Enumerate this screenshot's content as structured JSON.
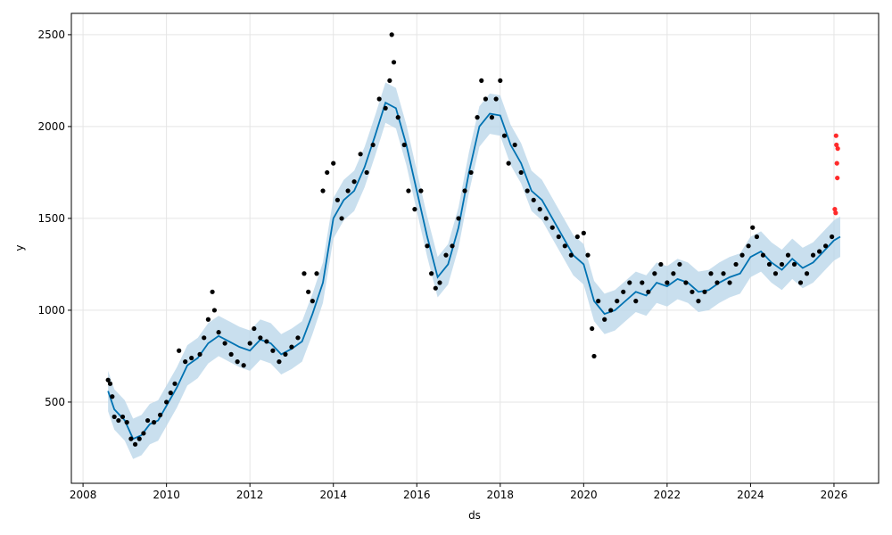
{
  "chart_data": {
    "type": "forecast",
    "xlabel": "ds",
    "ylabel": "y",
    "xlim": [
      2007.72,
      2027.07
    ],
    "ylim": [
      58,
      2616
    ],
    "xticks": [
      2008,
      2010,
      2012,
      2014,
      2016,
      2018,
      2020,
      2022,
      2024,
      2026
    ],
    "yticks": [
      500,
      1000,
      1500,
      2000,
      2500
    ],
    "grid": true,
    "series": [
      {
        "type": "scatter",
        "color": "#000000",
        "x": [
          2008.6,
          2008.65,
          2008.7,
          2008.75,
          2008.85,
          2008.95,
          2009.05,
          2009.15,
          2009.25,
          2009.35,
          2009.45,
          2009.55,
          2009.7,
          2009.85,
          2010.0,
          2010.1,
          2010.2,
          2010.3,
          2010.45,
          2010.6,
          2010.8,
          2010.9,
          2011.0,
          2011.1,
          2011.15,
          2011.25,
          2011.4,
          2011.55,
          2011.7,
          2011.85,
          2012.0,
          2012.1,
          2012.25,
          2012.4,
          2012.55,
          2012.7,
          2012.85,
          2013.0,
          2013.15,
          2013.3,
          2013.4,
          2013.5,
          2013.6,
          2013.75,
          2013.85,
          2014.0,
          2014.1,
          2014.2,
          2014.35,
          2014.5,
          2014.65,
          2014.8,
          2014.95,
          2015.1,
          2015.25,
          2015.35,
          2015.4,
          2015.45,
          2015.55,
          2015.7,
          2015.8,
          2015.95,
          2016.1,
          2016.25,
          2016.35,
          2016.45,
          2016.55,
          2016.7,
          2016.85,
          2017.0,
          2017.15,
          2017.3,
          2017.45,
          2017.55,
          2017.65,
          2017.8,
          2017.9,
          2018.0,
          2018.1,
          2018.2,
          2018.35,
          2018.5,
          2018.65,
          2018.8,
          2018.95,
          2019.1,
          2019.25,
          2019.4,
          2019.55,
          2019.7,
          2019.85,
          2020.0,
          2020.1,
          2020.2,
          2020.25,
          2020.35,
          2020.5,
          2020.65,
          2020.8,
          2020.95,
          2021.1,
          2021.25,
          2021.4,
          2021.55,
          2021.7,
          2021.85,
          2022.0,
          2022.15,
          2022.3,
          2022.45,
          2022.6,
          2022.75,
          2022.9,
          2023.05,
          2023.2,
          2023.35,
          2023.5,
          2023.65,
          2023.8,
          2023.95,
          2024.05,
          2024.15,
          2024.3,
          2024.45,
          2024.6,
          2024.75,
          2024.9,
          2025.05,
          2025.2,
          2025.35,
          2025.5,
          2025.65,
          2025.8,
          2025.95
        ],
        "values": [
          620,
          600,
          530,
          420,
          400,
          420,
          390,
          300,
          270,
          300,
          330,
          400,
          390,
          430,
          500,
          550,
          600,
          780,
          720,
          740,
          760,
          850,
          950,
          1100,
          1000,
          880,
          820,
          760,
          720,
          700,
          820,
          900,
          850,
          830,
          780,
          720,
          760,
          800,
          850,
          1200,
          1100,
          1050,
          1200,
          1650,
          1750,
          1800,
          1600,
          1500,
          1650,
          1700,
          1850,
          1750,
          1900,
          2150,
          2100,
          2250,
          2500,
          2350,
          2050,
          1900,
          1650,
          1550,
          1650,
          1350,
          1200,
          1120,
          1150,
          1300,
          1350,
          1500,
          1650,
          1750,
          2050,
          2250,
          2150,
          2050,
          2150,
          2250,
          1950,
          1800,
          1900,
          1750,
          1650,
          1600,
          1550,
          1500,
          1450,
          1400,
          1350,
          1300,
          1400,
          1420,
          1300,
          900,
          750,
          1050,
          950,
          1000,
          1050,
          1100,
          1150,
          1050,
          1150,
          1100,
          1200,
          1250,
          1150,
          1200,
          1250,
          1150,
          1100,
          1050,
          1100,
          1200,
          1150,
          1200,
          1150,
          1250,
          1300,
          1350,
          1450,
          1400,
          1300,
          1250,
          1200,
          1250,
          1300,
          1250,
          1150,
          1200,
          1300,
          1320,
          1350,
          1400
        ]
      },
      {
        "type": "line",
        "color": "#0072b2",
        "band_color": "#b7d4e8",
        "x": [
          2008.6,
          2008.75,
          2009.0,
          2009.2,
          2009.4,
          2009.6,
          2009.8,
          2010.0,
          2010.25,
          2010.5,
          2010.75,
          2011.0,
          2011.25,
          2011.5,
          2011.75,
          2012.0,
          2012.25,
          2012.5,
          2012.75,
          2013.0,
          2013.25,
          2013.5,
          2013.75,
          2014.0,
          2014.25,
          2014.5,
          2014.75,
          2015.0,
          2015.25,
          2015.5,
          2015.75,
          2016.0,
          2016.25,
          2016.5,
          2016.75,
          2017.0,
          2017.25,
          2017.5,
          2017.75,
          2018.0,
          2018.25,
          2018.5,
          2018.75,
          2019.0,
          2019.25,
          2019.5,
          2019.75,
          2020.0,
          2020.25,
          2020.5,
          2020.75,
          2021.0,
          2021.25,
          2021.5,
          2021.75,
          2022.0,
          2022.25,
          2022.5,
          2022.75,
          2023.0,
          2023.25,
          2023.5,
          2023.75,
          2024.0,
          2024.25,
          2024.5,
          2024.75,
          2025.0,
          2025.25,
          2025.5,
          2025.75,
          2026.0,
          2026.15
        ],
        "values": [
          560,
          460,
          400,
          300,
          320,
          380,
          400,
          480,
          580,
          700,
          740,
          820,
          860,
          830,
          800,
          780,
          840,
          820,
          760,
          790,
          830,
          980,
          1150,
          1500,
          1600,
          1650,
          1780,
          1950,
          2130,
          2100,
          1900,
          1650,
          1400,
          1180,
          1250,
          1450,
          1750,
          2000,
          2070,
          2060,
          1900,
          1800,
          1650,
          1600,
          1500,
          1400,
          1300,
          1250,
          1050,
          980,
          1000,
          1050,
          1100,
          1080,
          1150,
          1130,
          1170,
          1150,
          1100,
          1110,
          1150,
          1180,
          1200,
          1290,
          1320,
          1260,
          1220,
          1280,
          1230,
          1260,
          1320,
          1380,
          1400
        ],
        "lower": [
          450,
          350,
          290,
          190,
          210,
          270,
          290,
          370,
          470,
          590,
          630,
          710,
          750,
          720,
          690,
          670,
          730,
          710,
          650,
          680,
          720,
          870,
          1040,
          1390,
          1490,
          1540,
          1670,
          1840,
          2020,
          1990,
          1790,
          1540,
          1290,
          1070,
          1140,
          1340,
          1640,
          1890,
          1960,
          1950,
          1790,
          1690,
          1540,
          1490,
          1390,
          1290,
          1190,
          1140,
          940,
          870,
          890,
          940,
          990,
          970,
          1040,
          1020,
          1060,
          1040,
          990,
          1000,
          1040,
          1070,
          1090,
          1180,
          1210,
          1150,
          1110,
          1170,
          1120,
          1150,
          1210,
          1270,
          1290
        ],
        "upper": [
          670,
          570,
          510,
          410,
          430,
          490,
          510,
          590,
          690,
          810,
          850,
          930,
          970,
          940,
          910,
          890,
          950,
          930,
          870,
          900,
          940,
          1090,
          1260,
          1610,
          1710,
          1760,
          1890,
          2060,
          2240,
          2210,
          2010,
          1760,
          1510,
          1290,
          1360,
          1560,
          1860,
          2110,
          2180,
          2170,
          2010,
          1910,
          1760,
          1710,
          1610,
          1510,
          1410,
          1360,
          1160,
          1090,
          1110,
          1160,
          1210,
          1190,
          1260,
          1240,
          1280,
          1260,
          1210,
          1220,
          1260,
          1290,
          1310,
          1400,
          1430,
          1370,
          1330,
          1390,
          1340,
          1370,
          1430,
          1490,
          1510
        ]
      },
      {
        "type": "scatter",
        "color": "#ff2a2a",
        "x": [
          2026.02,
          2026.04,
          2026.05,
          2026.06,
          2026.07,
          2026.08,
          2026.09
        ],
        "values": [
          1550,
          1530,
          1950,
          1900,
          1800,
          1720,
          1880
        ]
      }
    ]
  }
}
